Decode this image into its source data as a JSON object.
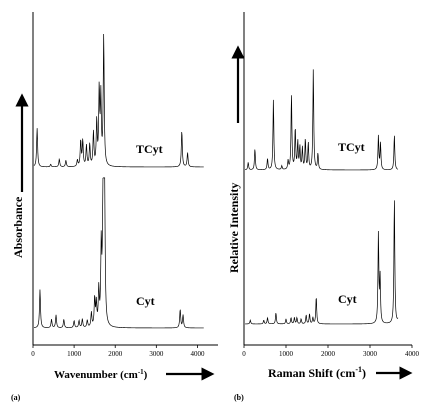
{
  "chart_data": [
    {
      "type": "line",
      "panel_label": "(a)",
      "xlabel": "Wavenumber (cm",
      "xlabel_sup": "-1",
      "xlabel_close": ")",
      "ylabel": "Absorbance",
      "xlim": [
        0,
        4500
      ],
      "xticks": [
        0,
        1000,
        2000,
        3000,
        4000
      ],
      "series": [
        {
          "name": "TCyt",
          "peaks": [
            [
              100,
              0.3
            ],
            [
              430,
              0.02
            ],
            [
              640,
              0.06
            ],
            [
              800,
              0.05
            ],
            [
              1080,
              0.05
            ],
            [
              1160,
              0.2
            ],
            [
              1210,
              0.2
            ],
            [
              1300,
              0.16
            ],
            [
              1380,
              0.17
            ],
            [
              1470,
              0.26
            ],
            [
              1550,
              0.34
            ],
            [
              1610,
              0.58
            ],
            [
              1650,
              0.52
            ],
            [
              1720,
              1.0
            ],
            [
              3620,
              0.28
            ],
            [
              3760,
              0.11
            ]
          ]
        },
        {
          "name": "Cyt",
          "peaks": [
            [
              170,
              0.27
            ],
            [
              450,
              0.06
            ],
            [
              560,
              0.09
            ],
            [
              750,
              0.06
            ],
            [
              1000,
              0.05
            ],
            [
              1120,
              0.05
            ],
            [
              1200,
              0.06
            ],
            [
              1320,
              0.05
            ],
            [
              1420,
              0.1
            ],
            [
              1500,
              0.2
            ],
            [
              1540,
              0.16
            ],
            [
              1600,
              0.25
            ],
            [
              1660,
              0.54
            ],
            [
              1700,
              0.62
            ],
            [
              1720,
              0.7
            ],
            [
              1740,
              1.0
            ],
            [
              3580,
              0.13
            ],
            [
              3650,
              0.09
            ]
          ]
        }
      ]
    },
    {
      "type": "line",
      "panel_label": "(b)",
      "xlabel": "Raman Shift (cm",
      "xlabel_sup": "-1",
      "xlabel_close": ")",
      "ylabel": "Relative Intensity",
      "xlim": [
        0,
        4000
      ],
      "xticks": [
        0,
        1000,
        2000,
        3000,
        4000
      ],
      "series": [
        {
          "name": "TCyt",
          "peaks": [
            [
              100,
              0.06
            ],
            [
              260,
              0.17
            ],
            [
              560,
              0.09
            ],
            [
              700,
              0.56
            ],
            [
              900,
              0.03
            ],
            [
              1050,
              0.07
            ],
            [
              1130,
              0.6
            ],
            [
              1220,
              0.33
            ],
            [
              1280,
              0.22
            ],
            [
              1330,
              0.18
            ],
            [
              1390,
              0.17
            ],
            [
              1460,
              0.24
            ],
            [
              1530,
              0.21
            ],
            [
              1650,
              0.8
            ],
            [
              1760,
              0.13
            ],
            [
              3200,
              0.27
            ],
            [
              3250,
              0.21
            ],
            [
              3580,
              0.28
            ]
          ]
        },
        {
          "name": "Cyt",
          "peaks": [
            [
              150,
              0.03
            ],
            [
              470,
              0.03
            ],
            [
              560,
              0.05
            ],
            [
              760,
              0.09
            ],
            [
              1000,
              0.04
            ],
            [
              1120,
              0.05
            ],
            [
              1200,
              0.05
            ],
            [
              1260,
              0.05
            ],
            [
              1360,
              0.04
            ],
            [
              1480,
              0.07
            ],
            [
              1560,
              0.08
            ],
            [
              1640,
              0.05
            ],
            [
              1720,
              0.22
            ],
            [
              3200,
              0.71
            ],
            [
              3240,
              0.36
            ],
            [
              3580,
              1.0
            ],
            [
              3700,
              0.27
            ]
          ]
        }
      ]
    }
  ]
}
